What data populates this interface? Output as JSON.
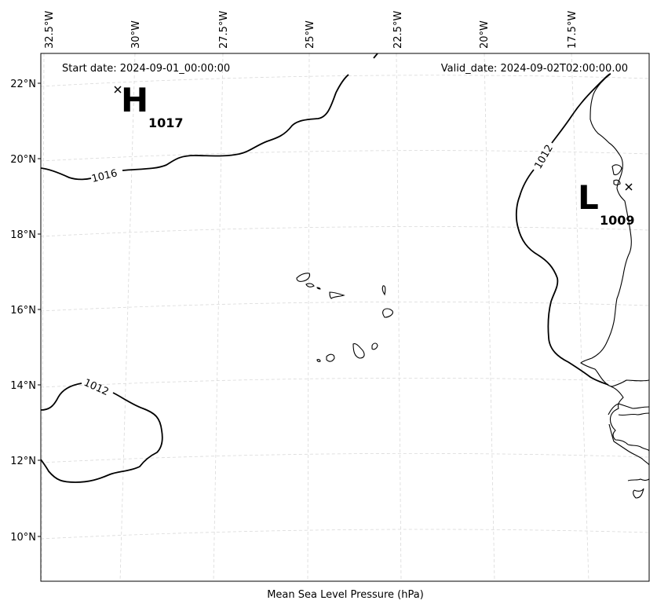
{
  "header": {
    "start_date": "Start date: 2024-09-01_00:00:00",
    "valid_date": "Valid_date: 2024-09-02T02:00:00.00"
  },
  "footer": {
    "field_label": "Mean Sea Level Pressure (hPa)"
  },
  "axes": {
    "lon_labels": [
      "32.5°W",
      "30°W",
      "27.5°W",
      "25°W",
      "22.5°W",
      "20°W",
      "17.5°W"
    ],
    "lat_labels": [
      "22°N",
      "20°N",
      "18°N",
      "16°N",
      "14°N",
      "12°N",
      "10°N"
    ]
  },
  "isobar_labels": {
    "label_1016": "1016",
    "label_1012_west": "1012",
    "label_1012_east": "1012"
  },
  "pressure_centers": {
    "high": {
      "letter": "H",
      "value": "1017"
    },
    "low": {
      "letter": "L",
      "value": "1009"
    }
  },
  "colors": {
    "isobar": "#000000",
    "coastline": "#000000",
    "gridline": "#d9d9d9",
    "frame": "#000000"
  }
}
